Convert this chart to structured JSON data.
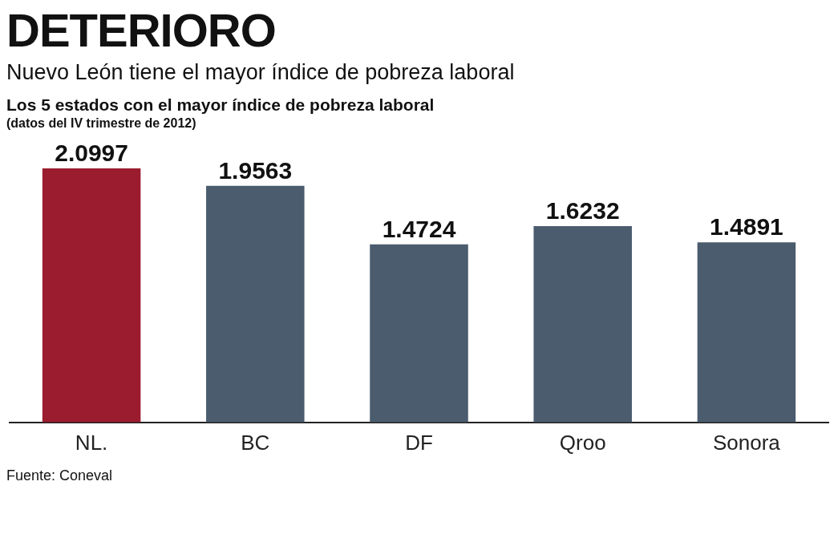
{
  "chart_data": {
    "type": "bar",
    "title": "DETERIORO",
    "subtitle": "Nuevo León tiene el mayor índice de pobreza laboral",
    "annotations": [
      "Los 5 estados con el mayor índice de pobreza laboral",
      "(datos del IV trimestre de 2012)",
      "Fuente: Coneval"
    ],
    "categories": [
      "NL.",
      "BC",
      "DF",
      "Qroo",
      "Sonora"
    ],
    "values": [
      2.0997,
      1.9563,
      1.4724,
      1.6232,
      1.4891
    ],
    "colors": [
      "#9b1c2e",
      "#4a5c6e",
      "#4a5c6e",
      "#4a5c6e",
      "#4a5c6e"
    ],
    "data_labels": true,
    "grid": false,
    "legend": false
  }
}
